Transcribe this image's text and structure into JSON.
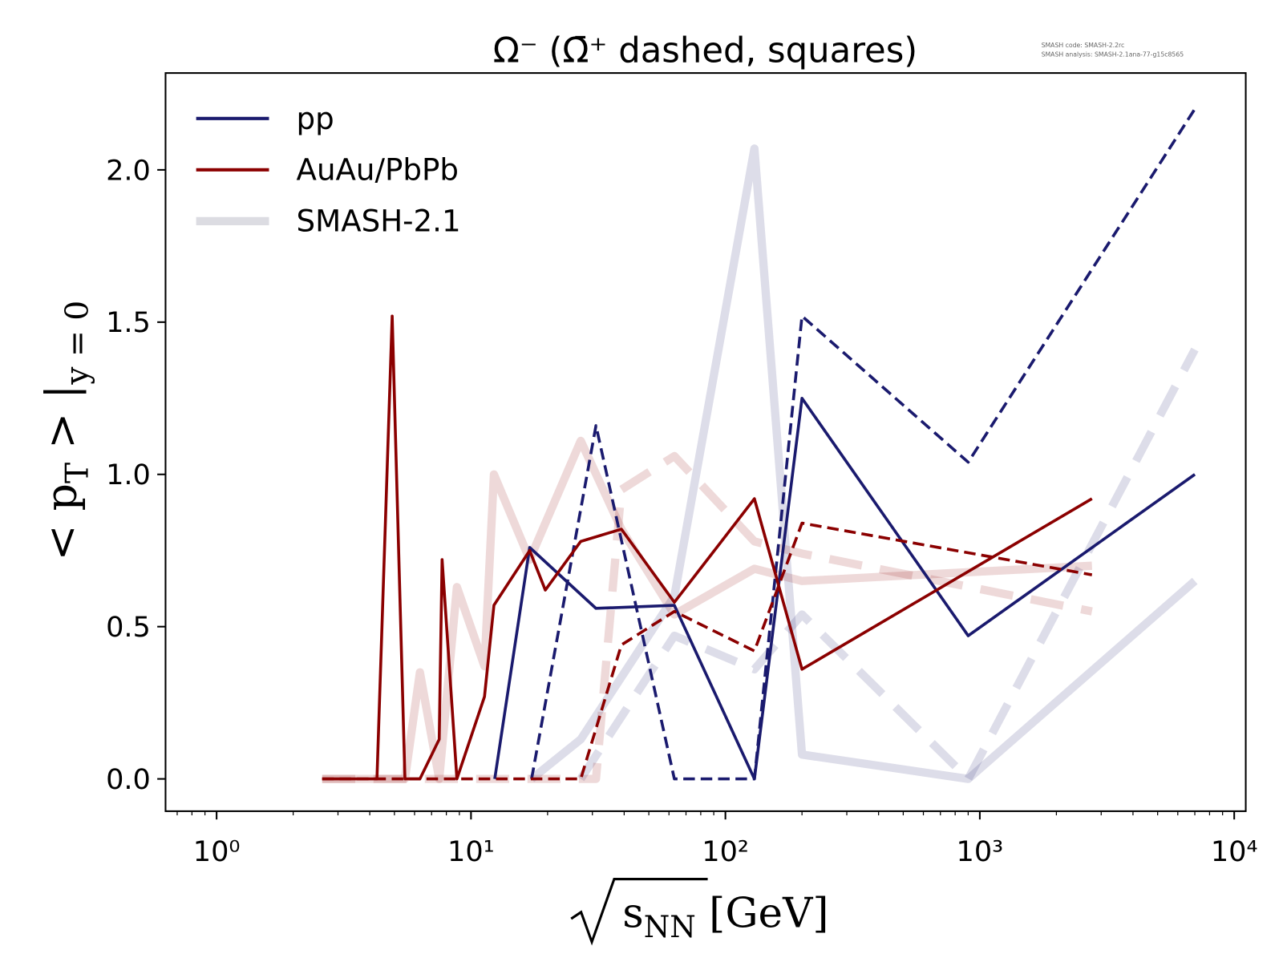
{
  "chart_data": {
    "type": "line",
    "title": "Ω⁻ (Ω̄⁺ dashed, squares)",
    "annotations": [
      "SMASH code:      SMASH-2.2rc",
      "SMASH analysis: SMASH-2.1ana-77-g15c8565"
    ],
    "xlabel": [
      "s",
      "NN",
      " [GeV]"
    ],
    "ylabel": [
      "< p",
      "T",
      " > |",
      "y = 0"
    ],
    "xscale": "log",
    "xlim": [
      0.63,
      11100
    ],
    "ylim": [
      -0.106,
      2.318
    ],
    "xticks": [
      {
        "value": 1,
        "label": "10⁰"
      },
      {
        "value": 10,
        "label": "10¹"
      },
      {
        "value": 100,
        "label": "10²"
      },
      {
        "value": 1000,
        "label": "10³"
      },
      {
        "value": 10000,
        "label": "10⁴"
      }
    ],
    "yticks": [
      {
        "value": 0,
        "label": "0.0"
      },
      0.5,
      {
        "value": 1,
        "label": "1.0"
      },
      1.5,
      {
        "value": 2,
        "label": "2.0"
      }
    ],
    "minor_ticks": true,
    "legend_position": "upper left",
    "legend": [
      {
        "label": "pp",
        "color": "#1a1a6e",
        "width": 4,
        "opacity": 1
      },
      {
        "label": "AuAu/PbPb",
        "color": "#8b0000",
        "width": 4,
        "opacity": 1
      },
      {
        "label": "SMASH-2.1",
        "color": "#dcdce2",
        "width": 10,
        "opacity": 1
      }
    ],
    "series": [
      {
        "color": "#1a1a6e",
        "width": 10,
        "opacity": 0.15,
        "dashed": false,
        "x": [
          17.3,
          27,
          63,
          130,
          200,
          900,
          7000
        ],
        "values": [
          0,
          0.13,
          0.6,
          2.07,
          0.08,
          0,
          0.65
        ]
      },
      {
        "color": "#1a1a6e",
        "width": 10,
        "opacity": 0.15,
        "dashed": true,
        "x": [
          27,
          63,
          130,
          200,
          900,
          7000
        ],
        "values": [
          0,
          0.47,
          0.36,
          0.54,
          0,
          1.41
        ]
      },
      {
        "color": "#8b0000",
        "width": 10,
        "opacity": 0.15,
        "dashed": false,
        "x": [
          2.6,
          5.5,
          6.3,
          7.5,
          8.8,
          11.3,
          12.3,
          17,
          27,
          39,
          63,
          130,
          200,
          2760
        ],
        "values": [
          0,
          0,
          0.35,
          0,
          0.63,
          0.37,
          1.0,
          0.72,
          1.11,
          0.82,
          0.54,
          0.69,
          0.65,
          0.7
        ]
      },
      {
        "color": "#8b0000",
        "width": 10,
        "opacity": 0.15,
        "dashed": true,
        "x": [
          2.6,
          31,
          39,
          63,
          130,
          200,
          2760
        ],
        "values": [
          0,
          0,
          0.95,
          1.06,
          0.78,
          0.74,
          0.55
        ]
      },
      {
        "color": "#1a1a6e",
        "width": 3.5,
        "opacity": 1,
        "dashed": false,
        "x": [
          12.4,
          17,
          31,
          63,
          130,
          200,
          900,
          7000
        ],
        "values": [
          0,
          0.76,
          0.56,
          0.57,
          0,
          1.25,
          0.47,
          1.0
        ]
      },
      {
        "color": "#1a1a6e",
        "width": 3.5,
        "opacity": 1,
        "dashed": true,
        "x": [
          17.3,
          31,
          63,
          130,
          200,
          900,
          7000
        ],
        "values": [
          0,
          1.16,
          0,
          0,
          1.52,
          1.04,
          2.2
        ]
      },
      {
        "color": "#8b0000",
        "width": 3.5,
        "opacity": 1,
        "dashed": false,
        "x": [
          2.6,
          4.27,
          4.9,
          5.5,
          6.3,
          7.5,
          7.7,
          8.8,
          11.3,
          12.3,
          17,
          19.6,
          27,
          39,
          63,
          130,
          200,
          2760
        ],
        "values": [
          0,
          0,
          1.52,
          0,
          0,
          0.13,
          0.72,
          0,
          0.27,
          0.57,
          0.75,
          0.62,
          0.78,
          0.82,
          0.58,
          0.92,
          0.36,
          0.92
        ]
      },
      {
        "color": "#8b0000",
        "width": 3.5,
        "opacity": 1,
        "dashed": true,
        "x": [
          2.6,
          27,
          39,
          63,
          130,
          200,
          2760
        ],
        "values": [
          0,
          0,
          0.44,
          0.55,
          0.42,
          0.84,
          0.67
        ]
      }
    ]
  }
}
